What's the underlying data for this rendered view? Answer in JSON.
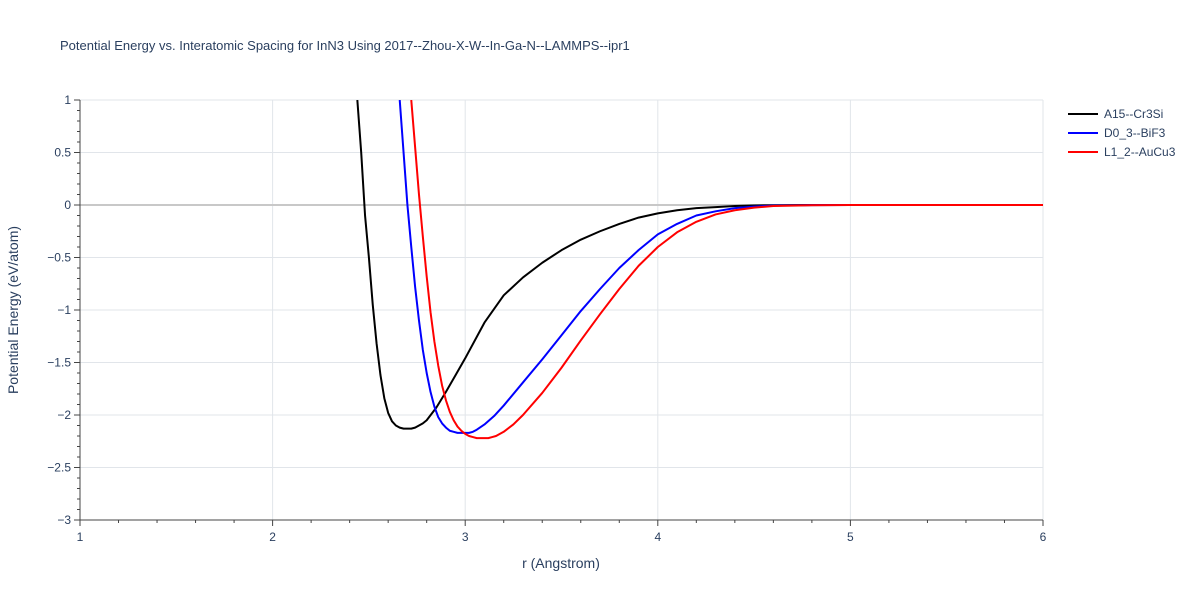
{
  "chart_data": {
    "type": "line",
    "title": "Potential Energy vs. Interatomic Spacing for InN3 Using 2017--Zhou-X-W--In-Ga-N--LAMMPS--ipr1",
    "xlabel": "r (Angstrom)",
    "ylabel": "Potential Energy (eV/atom)",
    "xlim": [
      1,
      6
    ],
    "ylim": [
      -3,
      1
    ],
    "xticks": [
      1,
      2,
      3,
      4,
      5,
      6
    ],
    "xtick_labels": [
      "1",
      "2",
      "3",
      "4",
      "5",
      "6"
    ],
    "yticks": [
      -3,
      -2.5,
      -2,
      -1.5,
      -1,
      -0.5,
      0,
      0.5,
      1
    ],
    "ytick_labels": [
      "−3",
      "−2.5",
      "−2",
      "−1.5",
      "−1",
      "−0.5",
      "0",
      "0.5",
      "1"
    ],
    "grid": true,
    "legend_position": "top-right",
    "series": [
      {
        "name": "A15--Cr3Si",
        "color": "#000000",
        "x": [
          2.44,
          2.46,
          2.48,
          2.5,
          2.52,
          2.54,
          2.56,
          2.58,
          2.6,
          2.62,
          2.64,
          2.66,
          2.68,
          2.7,
          2.72,
          2.74,
          2.76,
          2.78,
          2.8,
          2.85,
          2.9,
          2.95,
          3.0,
          3.1,
          3.2,
          3.3,
          3.4,
          3.5,
          3.6,
          3.7,
          3.8,
          3.9,
          4.0,
          4.1,
          4.2,
          4.3,
          4.4,
          4.5,
          4.6,
          4.8,
          5.0,
          5.5,
          6.0
        ],
        "y": [
          1.0,
          0.5,
          -0.1,
          -0.5,
          -0.95,
          -1.32,
          -1.62,
          -1.84,
          -1.98,
          -2.06,
          -2.1,
          -2.12,
          -2.13,
          -2.13,
          -2.13,
          -2.12,
          -2.1,
          -2.08,
          -2.05,
          -1.93,
          -1.78,
          -1.62,
          -1.46,
          -1.12,
          -0.86,
          -0.69,
          -0.55,
          -0.43,
          -0.33,
          -0.25,
          -0.18,
          -0.12,
          -0.08,
          -0.05,
          -0.03,
          -0.02,
          -0.01,
          -0.005,
          -0.002,
          0.0,
          0.0,
          0.0,
          0.0
        ]
      },
      {
        "name": "D0_3--BiF3",
        "color": "#0000ff",
        "x": [
          2.66,
          2.68,
          2.7,
          2.72,
          2.74,
          2.76,
          2.78,
          2.8,
          2.82,
          2.84,
          2.86,
          2.88,
          2.9,
          2.92,
          2.94,
          2.96,
          2.98,
          3.0,
          3.02,
          3.04,
          3.06,
          3.1,
          3.15,
          3.2,
          3.3,
          3.4,
          3.5,
          3.6,
          3.7,
          3.8,
          3.9,
          4.0,
          4.1,
          4.2,
          4.3,
          4.4,
          4.5,
          4.6,
          4.8,
          5.0,
          5.5,
          6.0
        ],
        "y": [
          1.0,
          0.5,
          0.0,
          -0.4,
          -0.78,
          -1.1,
          -1.38,
          -1.6,
          -1.78,
          -1.92,
          -2.02,
          -2.08,
          -2.12,
          -2.15,
          -2.16,
          -2.17,
          -2.17,
          -2.17,
          -2.17,
          -2.16,
          -2.14,
          -2.09,
          -2.01,
          -1.91,
          -1.69,
          -1.47,
          -1.24,
          -1.01,
          -0.8,
          -0.6,
          -0.43,
          -0.28,
          -0.18,
          -0.1,
          -0.06,
          -0.03,
          -0.015,
          -0.006,
          -0.001,
          0.0,
          0.0,
          0.0
        ]
      },
      {
        "name": "L1_2--AuCu3",
        "color": "#ff0000",
        "x": [
          2.72,
          2.74,
          2.76,
          2.78,
          2.8,
          2.82,
          2.84,
          2.86,
          2.88,
          2.9,
          2.92,
          2.94,
          2.96,
          2.98,
          3.0,
          3.02,
          3.04,
          3.06,
          3.08,
          3.1,
          3.12,
          3.14,
          3.16,
          3.2,
          3.25,
          3.3,
          3.4,
          3.5,
          3.6,
          3.7,
          3.8,
          3.9,
          4.0,
          4.1,
          4.2,
          4.3,
          4.4,
          4.5,
          4.6,
          4.8,
          5.0,
          5.5,
          6.0
        ],
        "y": [
          1.0,
          0.55,
          0.1,
          -0.3,
          -0.68,
          -1.02,
          -1.3,
          -1.53,
          -1.72,
          -1.86,
          -1.97,
          -2.05,
          -2.11,
          -2.15,
          -2.18,
          -2.2,
          -2.21,
          -2.22,
          -2.22,
          -2.22,
          -2.22,
          -2.21,
          -2.2,
          -2.16,
          -2.09,
          -2.0,
          -1.79,
          -1.55,
          -1.29,
          -1.04,
          -0.8,
          -0.58,
          -0.4,
          -0.26,
          -0.16,
          -0.09,
          -0.05,
          -0.025,
          -0.01,
          -0.002,
          0.0,
          0.0,
          0.0
        ]
      }
    ]
  }
}
